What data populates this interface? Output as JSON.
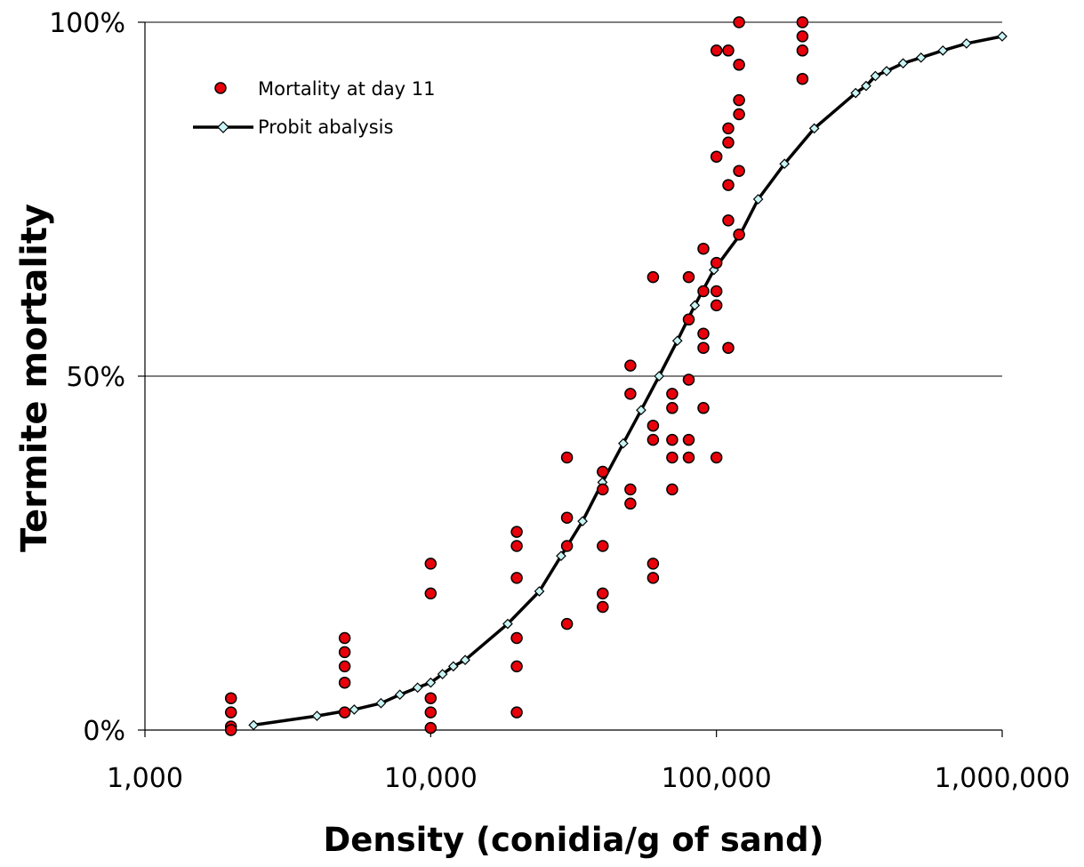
{
  "chart_data": {
    "type": "scatter",
    "title": "",
    "xlabel": "Density (conidia/g of sand)",
    "ylabel": "Termite mortality",
    "x_scale": "log",
    "xlim": [
      1000,
      1000000
    ],
    "ylim": [
      0,
      100
    ],
    "x_ticks": [
      {
        "value": 1000,
        "label": "1,000"
      },
      {
        "value": 10000,
        "label": "10,000"
      },
      {
        "value": 100000,
        "label": "100,000"
      },
      {
        "value": 1000000,
        "label": "1,000,000"
      }
    ],
    "y_ticks": [
      {
        "value": 0,
        "label": "0%"
      },
      {
        "value": 50,
        "label": "50%"
      },
      {
        "value": 100,
        "label": "100%"
      }
    ],
    "grid": "horizontal",
    "legend_position": "top-left",
    "series": [
      {
        "name": "Mortality at day 11",
        "type": "scatter",
        "marker": "circle",
        "color": "#e8000b",
        "points": [
          [
            2000,
            4.5
          ],
          [
            2000,
            2.5
          ],
          [
            2000,
            0.5
          ],
          [
            2000,
            0
          ],
          [
            5000,
            13
          ],
          [
            5000,
            11
          ],
          [
            5000,
            9
          ],
          [
            5000,
            6.7
          ],
          [
            5000,
            2.5
          ],
          [
            10000,
            23.5
          ],
          [
            10000,
            19.3
          ],
          [
            10000,
            4.5
          ],
          [
            10000,
            2.5
          ],
          [
            10000,
            0.3
          ],
          [
            20000,
            28
          ],
          [
            20000,
            26
          ],
          [
            20000,
            21.5
          ],
          [
            20000,
            13
          ],
          [
            20000,
            9
          ],
          [
            20000,
            2.5
          ],
          [
            30000,
            38.5
          ],
          [
            30000,
            30
          ],
          [
            30000,
            26
          ],
          [
            30000,
            15
          ],
          [
            40000,
            36.5
          ],
          [
            40000,
            34
          ],
          [
            40000,
            26
          ],
          [
            40000,
            19.3
          ],
          [
            40000,
            17.4
          ],
          [
            50000,
            51.5
          ],
          [
            50000,
            47.5
          ],
          [
            50000,
            34
          ],
          [
            50000,
            32
          ],
          [
            60000,
            64
          ],
          [
            60000,
            43
          ],
          [
            60000,
            41
          ],
          [
            60000,
            23.5
          ],
          [
            60000,
            21.5
          ],
          [
            70000,
            47.5
          ],
          [
            70000,
            45.5
          ],
          [
            70000,
            41
          ],
          [
            70000,
            38.5
          ],
          [
            70000,
            34
          ],
          [
            80000,
            64
          ],
          [
            80000,
            58
          ],
          [
            80000,
            49.5
          ],
          [
            80000,
            41
          ],
          [
            80000,
            38.5
          ],
          [
            90000,
            68
          ],
          [
            90000,
            62
          ],
          [
            90000,
            56
          ],
          [
            90000,
            54
          ],
          [
            90000,
            45.5
          ],
          [
            100000,
            96
          ],
          [
            100000,
            81
          ],
          [
            100000,
            66
          ],
          [
            100000,
            62
          ],
          [
            100000,
            60
          ],
          [
            100000,
            38.5
          ],
          [
            110000,
            96
          ],
          [
            110000,
            85
          ],
          [
            110000,
            83
          ],
          [
            110000,
            77
          ],
          [
            110000,
            72
          ],
          [
            110000,
            54
          ],
          [
            120000,
            100
          ],
          [
            120000,
            94
          ],
          [
            120000,
            89
          ],
          [
            120000,
            87
          ],
          [
            120000,
            79
          ],
          [
            120000,
            70
          ],
          [
            200000,
            100
          ],
          [
            200000,
            98
          ],
          [
            200000,
            96
          ],
          [
            200000,
            92
          ]
        ]
      },
      {
        "name": "Probit abalysis",
        "type": "line",
        "marker": "diamond",
        "color": "#000000",
        "marker_fill": "#c8f4f4",
        "points": [
          [
            2400,
            0.7
          ],
          [
            4000,
            2
          ],
          [
            5400,
            2.9
          ],
          [
            6700,
            3.8
          ],
          [
            7800,
            5
          ],
          [
            9000,
            6
          ],
          [
            10000,
            6.7
          ],
          [
            11000,
            7.9
          ],
          [
            12000,
            9
          ],
          [
            13200,
            9.9
          ],
          [
            18600,
            15
          ],
          [
            24000,
            19.6
          ],
          [
            28600,
            24.6
          ],
          [
            34000,
            29.5
          ],
          [
            39900,
            35
          ],
          [
            47200,
            40.5
          ],
          [
            54500,
            45.2
          ],
          [
            63000,
            50
          ],
          [
            73000,
            55
          ],
          [
            84000,
            60
          ],
          [
            98000,
            65
          ],
          [
            121000,
            70
          ],
          [
            140000,
            75
          ],
          [
            173000,
            80
          ],
          [
            220000,
            85
          ],
          [
            307000,
            90
          ],
          [
            334000,
            91
          ],
          [
            360000,
            92.4
          ],
          [
            394000,
            93.1
          ],
          [
            450000,
            94.2
          ],
          [
            520000,
            95
          ],
          [
            620000,
            96
          ],
          [
            750000,
            97
          ],
          [
            1000000,
            98
          ]
        ]
      }
    ]
  }
}
